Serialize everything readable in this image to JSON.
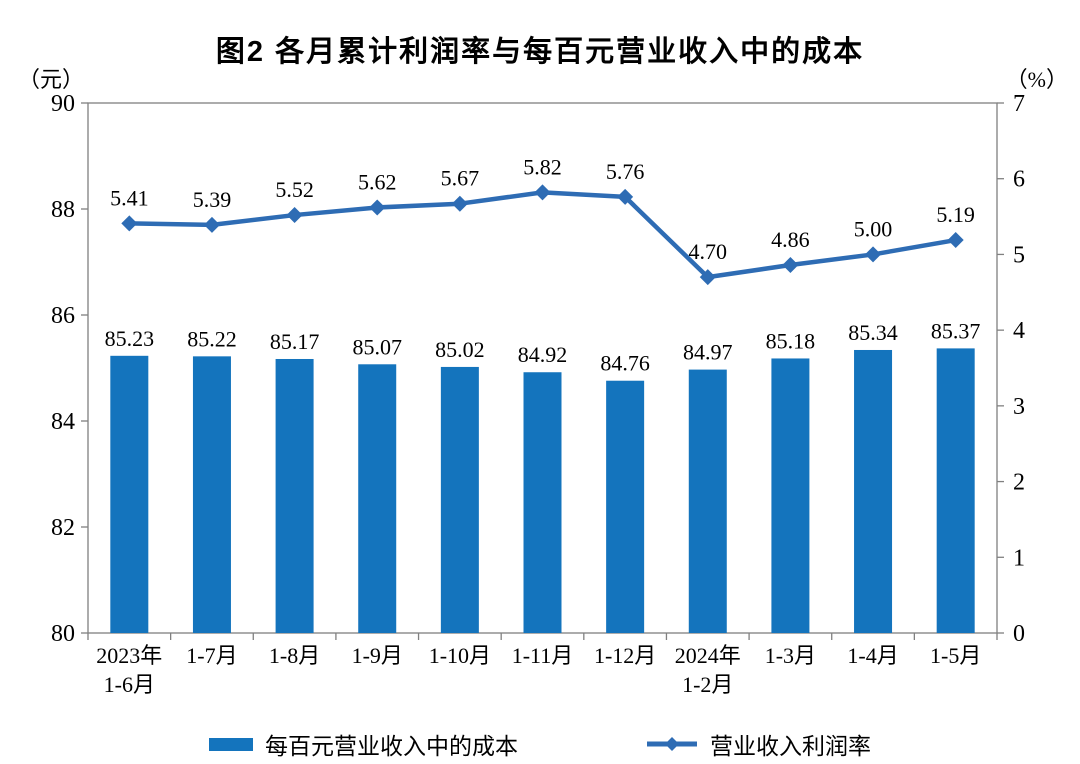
{
  "page": {
    "title": "图2  各月累计利润率与每百元营业收入中的成本",
    "unit_left": "（元）",
    "unit_right": "（%）"
  },
  "chart_data": {
    "type": "bar+line combo",
    "title": "图2  各月累计利润率与每百元营业收入中的成本",
    "categories": [
      "2023年\n1-6月",
      "1-7月",
      "1-8月",
      "1-9月",
      "1-10月",
      "1-11月",
      "1-12月",
      "2024年\n1-2月",
      "1-3月",
      "1-4月",
      "1-5月"
    ],
    "series": [
      {
        "name": "每百元营业收入中的成本",
        "type": "bar",
        "axis": "left",
        "color": "#1474bd",
        "values": [
          85.23,
          85.22,
          85.17,
          85.07,
          85.02,
          84.92,
          84.76,
          84.97,
          85.18,
          85.34,
          85.37
        ]
      },
      {
        "name": "营业收入利润率",
        "type": "line",
        "axis": "right",
        "color": "#2e6cb4",
        "marker": "diamond",
        "values": [
          5.41,
          5.39,
          5.52,
          5.62,
          5.67,
          5.82,
          5.76,
          4.7,
          4.86,
          5.0,
          5.19
        ]
      }
    ],
    "left_axis": {
      "label": "（元）",
      "min": 80,
      "max": 90,
      "ticks": [
        80,
        82,
        84,
        86,
        88,
        90
      ]
    },
    "right_axis": {
      "label": "（%）",
      "min": 0,
      "max": 7,
      "ticks": [
        0,
        1,
        2,
        3,
        4,
        5,
        6,
        7
      ]
    },
    "grid": false,
    "legend_position": "bottom",
    "data_labels": true,
    "axis_line_color": "#808080"
  }
}
